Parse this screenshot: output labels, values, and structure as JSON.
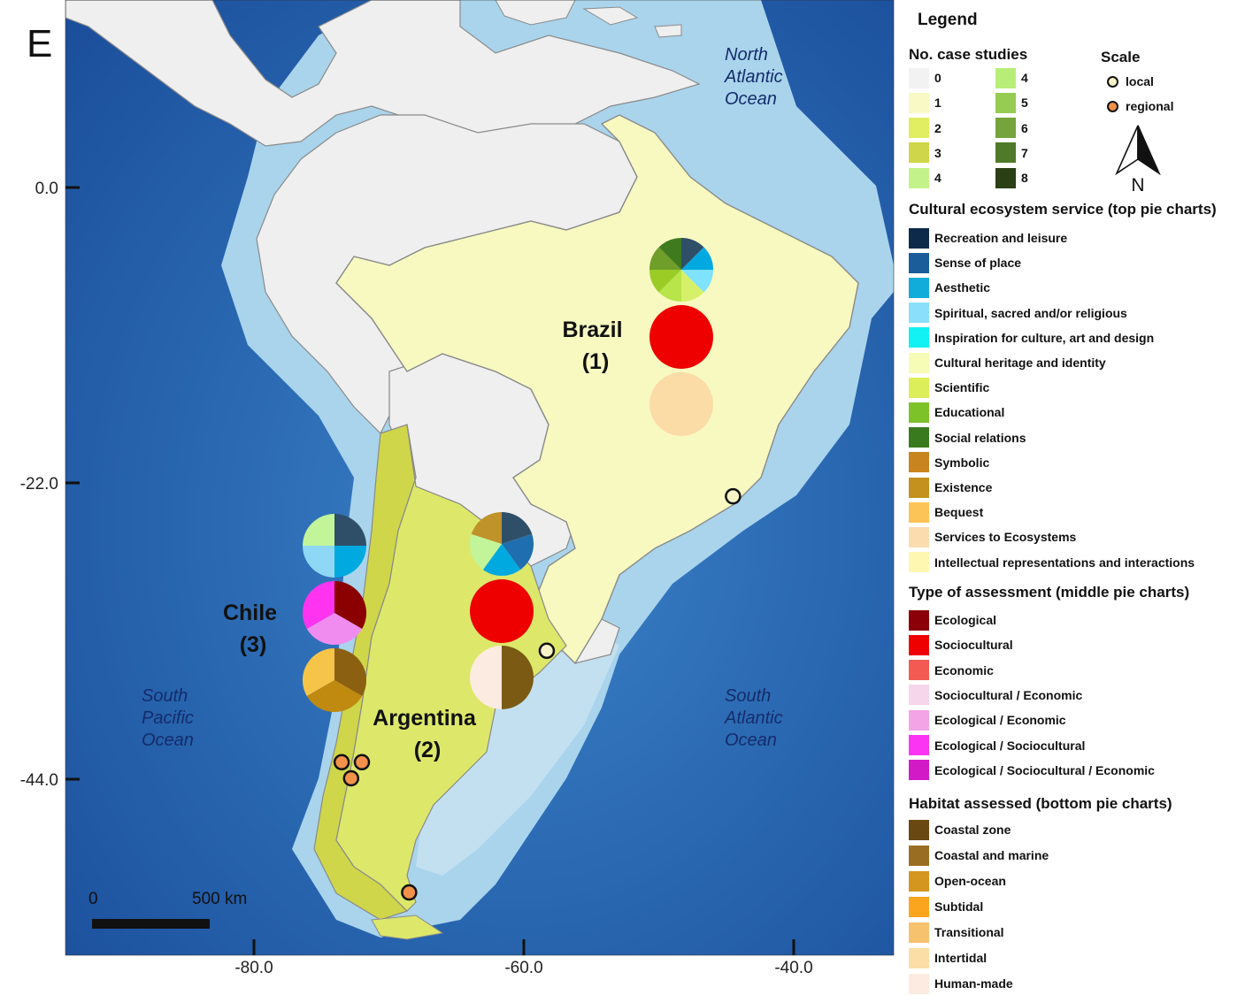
{
  "panel_letter": "E",
  "map": {
    "y_ticks": [
      "0.0",
      "-22.0",
      "-44.0"
    ],
    "x_ticks": [
      "-80.0",
      "-60.0",
      "-40.0"
    ],
    "scale_bar": {
      "start": "0",
      "end": "500 km"
    },
    "ocean_labels": [
      {
        "lines": [
          "North",
          "Atlantic",
          "Ocean"
        ]
      },
      {
        "lines": [
          "South",
          "Pacific",
          "Ocean"
        ]
      },
      {
        "lines": [
          "South",
          "Atlantic",
          "Ocean"
        ]
      }
    ],
    "countries": [
      {
        "name": "Brazil",
        "number": "(1)",
        "fill": "#f7f9c0"
      },
      {
        "name": "Argentina",
        "number": "(2)",
        "fill": "#dde86a"
      },
      {
        "name": "Chile",
        "number": "(3)",
        "fill": "#cfd64a"
      }
    ],
    "colors": {
      "ocean_deep": "#1f5fae",
      "ocean_shelf": "#a9d4ec",
      "land_other": "#efefef",
      "border": "#8a8a8a"
    },
    "pie_sets": [
      {
        "country": "Brazil",
        "top": [
          "#2f4f68",
          "#00a9e0",
          "#7fe2ff",
          "#d6f06a",
          "#b8e54a",
          "#9bcc26",
          "#6f9e2a",
          "#3f7a1e"
        ],
        "middle": [
          "#ee0000"
        ],
        "bottom": [
          "#fbdca6"
        ]
      },
      {
        "country": "Argentina",
        "top": [
          "#2f4f68",
          "#1f6fb0",
          "#00a9e0",
          "#c2f59a",
          "#c0922a"
        ],
        "middle": [
          "#ee0000"
        ],
        "bottom": [
          "#7b5a14",
          "#fcebe0"
        ]
      },
      {
        "country": "Chile",
        "top": [
          "#2f4f68",
          "#00a9e0",
          "#8fd8f5",
          "#c2f59a"
        ],
        "middle": [
          "#8b0000",
          "#f08cf0",
          "#ff33f0"
        ],
        "bottom": [
          "#8b6010",
          "#c08a10",
          "#f7c44a"
        ]
      }
    ],
    "study_points": [
      {
        "scale": "local",
        "lon": -44.5,
        "lat": -23.0
      },
      {
        "scale": "local",
        "lon": -58.3,
        "lat": -34.5
      },
      {
        "scale": "regional",
        "lon": -73.5,
        "lat": -42.8
      },
      {
        "scale": "regional",
        "lon": -72.0,
        "lat": -42.8
      },
      {
        "scale": "regional",
        "lon": -72.8,
        "lat": -44.0
      },
      {
        "scale": "regional",
        "lon": -68.5,
        "lat": -52.5
      }
    ]
  },
  "legend": {
    "title": "Legend",
    "ncase": {
      "title": "No. case studies",
      "items": [
        {
          "label": "0",
          "color": "#f2f2f2"
        },
        {
          "label": "1",
          "color": "#f8f9c4"
        },
        {
          "label": "2",
          "color": "#e2ee62"
        },
        {
          "label": "3",
          "color": "#cfd64a"
        },
        {
          "label": "4",
          "color": "#c4f28a"
        },
        {
          "label": "4",
          "color": "#b8ee78"
        },
        {
          "label": "5",
          "color": "#96cc52"
        },
        {
          "label": "6",
          "color": "#74a43a"
        },
        {
          "label": "7",
          "color": "#4f7a2a"
        },
        {
          "label": "8",
          "color": "#2a3f14"
        }
      ]
    },
    "scale": {
      "title": "Scale",
      "items": [
        {
          "label": "local",
          "color": "#f7f3c6"
        },
        {
          "label": "regional",
          "color": "#f2914a"
        }
      ]
    },
    "north": "N",
    "ces": {
      "title": "Cultural ecosystem service (top pie charts)",
      "items": [
        {
          "label": "Recreation and leisure",
          "color": "#0e2a4a"
        },
        {
          "label": "Sense of place",
          "color": "#1a5d9a"
        },
        {
          "label": "Aesthetic",
          "color": "#11acd9"
        },
        {
          "label": "Spiritual, sacred and/or religious",
          "color": "#8ae0fb"
        },
        {
          "label": "Inspiration for culture, art and design",
          "color": "#12f2f2"
        },
        {
          "label": "Cultural heritage and identity",
          "color": "#f6fbb6"
        },
        {
          "label": "Scientific",
          "color": "#dcee5a"
        },
        {
          "label": "Educational",
          "color": "#7ec22a"
        },
        {
          "label": "Social relations",
          "color": "#3a7a1e"
        },
        {
          "label": "Symbolic",
          "color": "#c8841e"
        },
        {
          "label": "Existence",
          "color": "#c4901e"
        },
        {
          "label": "Bequest",
          "color": "#fcc456"
        },
        {
          "label": "Services to Ecosystems",
          "color": "#fbdcae"
        },
        {
          "label": "Intellectual representations and interactions",
          "color": "#fdf7b2"
        }
      ]
    },
    "assessment": {
      "title": "Type of assessment (middle pie charts)",
      "items": [
        {
          "label": "Ecological",
          "color": "#8b0008"
        },
        {
          "label": "Sociocultural",
          "color": "#ee0000"
        },
        {
          "label": "Economic",
          "color": "#f25a52"
        },
        {
          "label": "Sociocultural / Economic",
          "color": "#f6d6ea"
        },
        {
          "label": "Ecological / Economic",
          "color": "#f2a4e6"
        },
        {
          "label": "Ecological / Sociocultural",
          "color": "#fb33f2"
        },
        {
          "label": "Ecological / Sociocultural / Economic",
          "color": "#d21ac6"
        }
      ]
    },
    "habitat": {
      "title": "Habitat assessed (bottom pie charts)",
      "items": [
        {
          "label": "Coastal zone",
          "color": "#6a4812"
        },
        {
          "label": "Coastal and marine",
          "color": "#9a6e22"
        },
        {
          "label": "Open-ocean",
          "color": "#d4961e"
        },
        {
          "label": "Subtidal",
          "color": "#fba41e"
        },
        {
          "label": "Transitional",
          "color": "#f7c26e"
        },
        {
          "label": "Intertidal",
          "color": "#fbdea6"
        },
        {
          "label": "Human-made",
          "color": "#fdeae0"
        }
      ]
    }
  }
}
